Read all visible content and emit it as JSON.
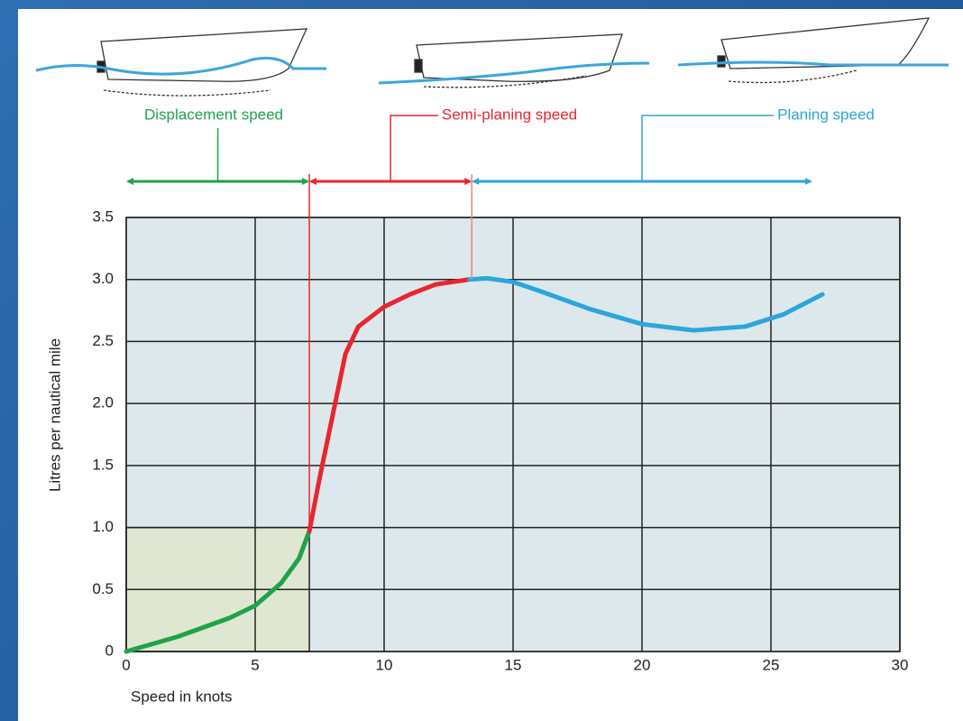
{
  "chart_data": {
    "type": "line",
    "xlabel": "Speed in knots",
    "ylabel": "Litres per nautical mile",
    "xlim": [
      0,
      30
    ],
    "xticks": [
      0,
      5,
      10,
      15,
      20,
      25,
      30
    ],
    "ylim": [
      0,
      3.5
    ],
    "yticks": [
      0,
      0.5,
      {
        "value": 1,
        "label": "1.0"
      },
      1.5,
      {
        "value": 2,
        "label": "2.0"
      },
      2.5,
      {
        "value": 3,
        "label": "3.0"
      },
      3.5
    ],
    "grid": true,
    "series": [
      {
        "name": "Displacement speed",
        "color": "#1fa34a",
        "x": [
          0,
          2,
          4,
          5,
          6,
          6.7,
          7.1
        ],
        "values": [
          0,
          0.12,
          0.27,
          0.37,
          0.55,
          0.75,
          0.97
        ]
      },
      {
        "name": "Semi-planing speed",
        "color": "#e8262f",
        "x": [
          7.1,
          7.5,
          8,
          8.5,
          9,
          10,
          11,
          12,
          13.3
        ],
        "values": [
          0.97,
          1.4,
          1.9,
          2.4,
          2.62,
          2.78,
          2.88,
          2.96,
          3.0
        ]
      },
      {
        "name": "Planing speed",
        "color": "#2ba6dc",
        "x": [
          13.3,
          14,
          15,
          16,
          18,
          20,
          22,
          24,
          25.5,
          27
        ],
        "values": [
          3.0,
          3.01,
          2.98,
          2.91,
          2.76,
          2.64,
          2.59,
          2.62,
          2.72,
          2.88
        ]
      }
    ],
    "zones": [
      {
        "label": "Displacement speed",
        "color": "#1fa34a",
        "start": 0,
        "end": 7.1
      },
      {
        "label": "Semi-planing speed",
        "color": "#e8262f",
        "start": 7.1,
        "end": 13.4
      },
      {
        "label": "Planing speed",
        "color": "#2ba6dc",
        "start": 13.4,
        "end": 26.6
      }
    ],
    "shaded_region": {
      "xlim": [
        0,
        7.1
      ],
      "ylim": [
        0,
        1
      ],
      "color": "#dfe7d2"
    }
  }
}
